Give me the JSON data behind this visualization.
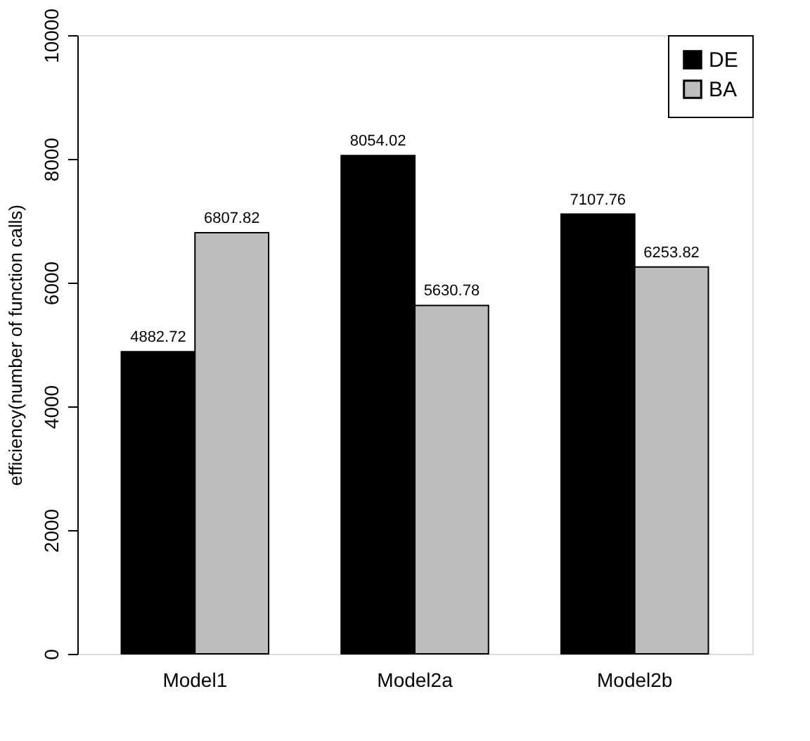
{
  "chart_data": {
    "type": "bar",
    "ylabel": "efficiency(number of function calls)",
    "categories": [
      "Model1",
      "Model2a",
      "Model2b"
    ],
    "series": [
      {
        "name": "DE",
        "color": "#000000",
        "values": [
          4882.72,
          8054.02,
          7107.76
        ]
      },
      {
        "name": "BA",
        "color": "#bebebe",
        "values": [
          6807.82,
          5630.78,
          6253.82
        ]
      }
    ],
    "ylim": [
      0,
      10000
    ],
    "yticks": [
      0,
      2000,
      4000,
      6000,
      8000,
      10000
    ],
    "grid": false,
    "legend": "top right",
    "data_labels": true
  }
}
